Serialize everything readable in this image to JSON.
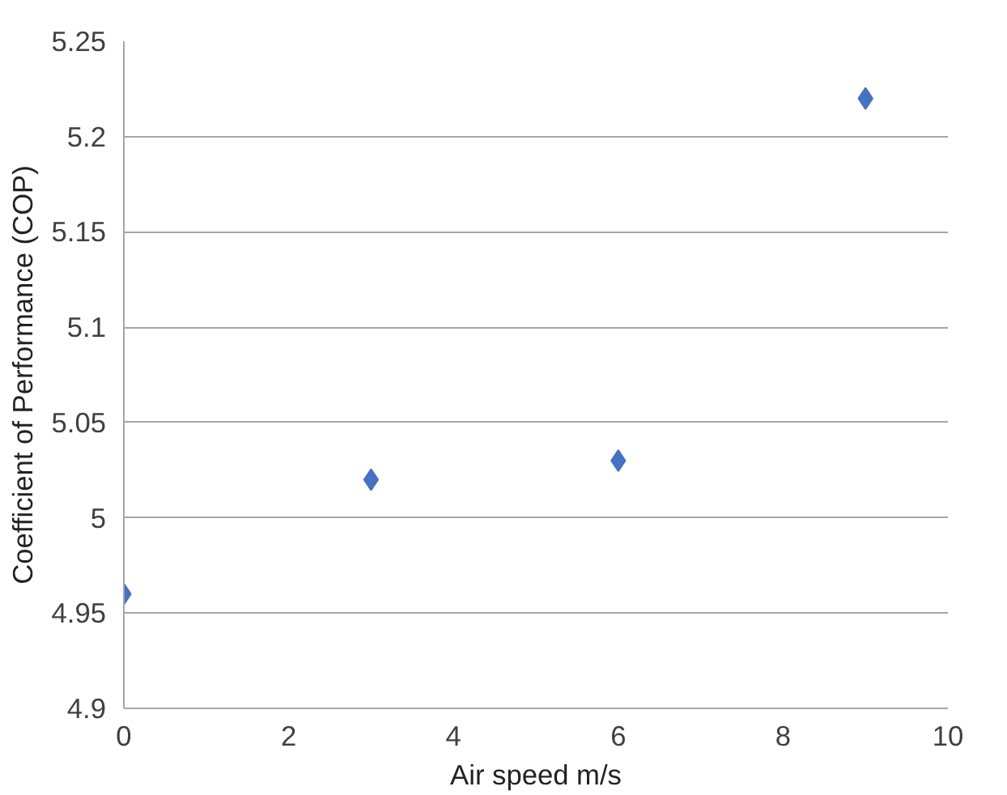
{
  "chart_data": {
    "type": "scatter",
    "xlabel": "Air speed m/s",
    "ylabel": "Coefficient of Performance (COP)",
    "x": [
      0,
      3,
      6,
      9
    ],
    "series": [
      {
        "color": "#4472c4",
        "values": [
          4.96,
          5.02,
          5.03,
          5.22
        ]
      }
    ],
    "xlim": [
      0,
      10
    ],
    "xticks": [
      0,
      2,
      4,
      6,
      8,
      10
    ],
    "ylim": [
      4.9,
      5.25
    ],
    "yticks": [
      4.9,
      4.95,
      5,
      5.05,
      5.1,
      5.15,
      5.2,
      5.25
    ],
    "grid": "y",
    "marker": "diamond"
  }
}
